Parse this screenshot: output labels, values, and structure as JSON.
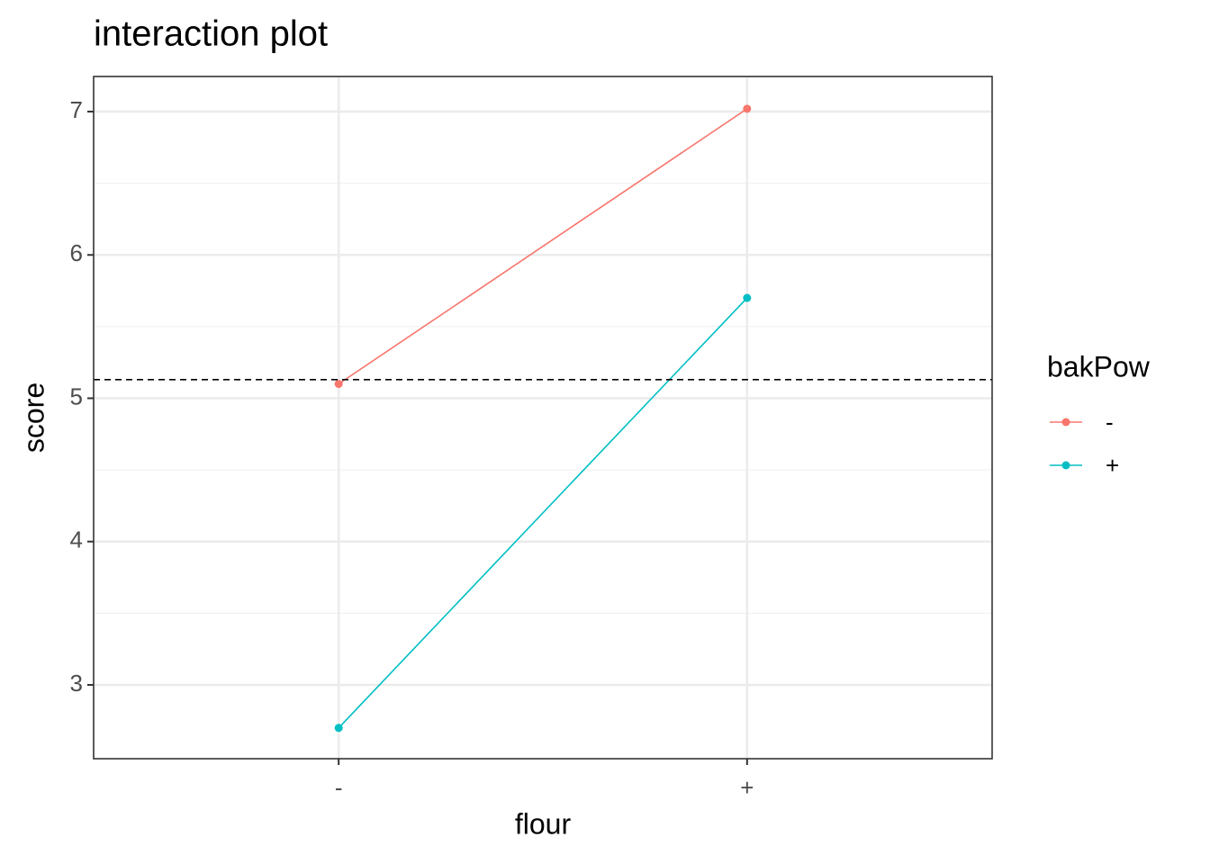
{
  "chart_data": {
    "type": "line",
    "title": "interaction plot",
    "x_label": "flour",
    "y_label": "score",
    "categories": [
      "-",
      "+"
    ],
    "series": [
      {
        "name": "-",
        "color": "#F8766D",
        "values": [
          5.1,
          7.02
        ]
      },
      {
        "name": "+",
        "color": "#00BFC4",
        "values": [
          2.7,
          5.7
        ]
      }
    ],
    "legend_title": "bakPow",
    "legend_position": "right",
    "ylim": [
      2.485,
      7.245
    ],
    "yticks": [
      3,
      4,
      5,
      6,
      7
    ],
    "minor_yticks": [
      3.5,
      4.5,
      5.5,
      6.5
    ],
    "hline": 5.13,
    "grid": true
  }
}
